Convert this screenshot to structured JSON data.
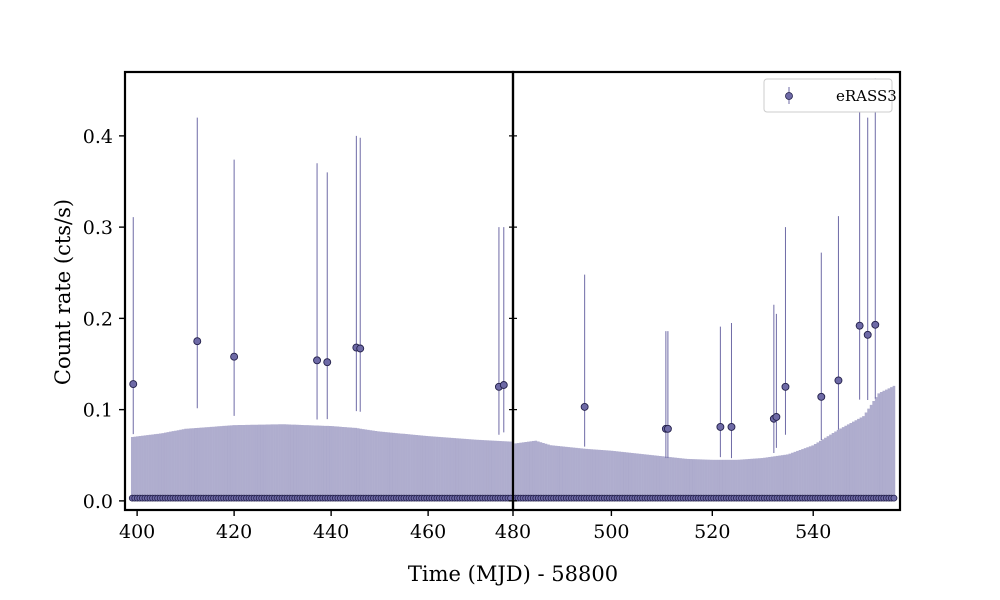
{
  "chart_data": {
    "type": "scatter",
    "xlabel": "Time (MJD) - 58800",
    "ylabel": "Count rate (cts/s)",
    "ylim": [
      -0.01,
      0.47
    ],
    "yticks": [
      0.0,
      0.1,
      0.2,
      0.3,
      0.4
    ],
    "ytick_labels": [
      "0.0",
      "0.1",
      "0.2",
      "0.3",
      "0.4"
    ],
    "legend": {
      "label": "eRASS3",
      "placement": "top-right"
    },
    "colors": {
      "marker_fill": "#6e6aa6",
      "marker_edge": "#23204a",
      "errorbar": "#6e6aa6",
      "frame": "#000000"
    },
    "panels": [
      {
        "xlim": [
          397.5,
          477.5
        ],
        "xticks": [
          400,
          420,
          440,
          460
        ],
        "xtick_labels": [
          "400",
          "420",
          "440",
          "460"
        ],
        "upper_error_curve": [
          [
            399,
            0.067
          ],
          [
            405,
            0.071
          ],
          [
            410,
            0.076
          ],
          [
            415,
            0.078
          ],
          [
            420,
            0.08
          ],
          [
            430,
            0.081
          ],
          [
            440,
            0.079
          ],
          [
            445,
            0.077
          ],
          [
            450,
            0.073
          ],
          [
            460,
            0.068
          ],
          [
            470,
            0.064
          ],
          [
            477,
            0.062
          ]
        ],
        "detections": [
          {
            "x": 399.2,
            "y": 0.128,
            "err": 0.183
          },
          {
            "x": 412.4,
            "y": 0.175,
            "err": 0.245
          },
          {
            "x": 420.0,
            "y": 0.158,
            "err": 0.216
          },
          {
            "x": 437.1,
            "y": 0.154,
            "err": 0.216
          },
          {
            "x": 439.2,
            "y": 0.152,
            "err": 0.208
          },
          {
            "x": 445.2,
            "y": 0.168,
            "err": 0.232
          },
          {
            "x": 446.0,
            "y": 0.167,
            "err": 0.231
          },
          {
            "x": 474.6,
            "y": 0.125,
            "err": 0.175
          },
          {
            "x": 475.6,
            "y": 0.127,
            "err": 0.173
          }
        ],
        "nondetection_range": [
          399.0,
          477.0
        ],
        "nondetection_count": 150
      },
      {
        "xlim": [
          480.5,
          557.2
        ],
        "xticks": [
          480,
          500,
          520,
          540
        ],
        "xtick_labels": [
          "480",
          "500",
          "520",
          "540"
        ],
        "upper_error_curve": [
          [
            481,
            0.06
          ],
          [
            485,
            0.063
          ],
          [
            488,
            0.058
          ],
          [
            495,
            0.054
          ],
          [
            500,
            0.052
          ],
          [
            505,
            0.049
          ],
          [
            510,
            0.046
          ],
          [
            515,
            0.043
          ],
          [
            520,
            0.042
          ],
          [
            525,
            0.042
          ],
          [
            530,
            0.044
          ],
          [
            535,
            0.048
          ],
          [
            540,
            0.058
          ],
          [
            545,
            0.075
          ],
          [
            550,
            0.09
          ],
          [
            553,
            0.115
          ],
          [
            556,
            0.123
          ]
        ],
        "detections": [
          {
            "x": 494.7,
            "y": 0.103,
            "err": 0.145
          },
          {
            "x": 510.8,
            "y": 0.079,
            "err": 0.107
          },
          {
            "x": 511.2,
            "y": 0.079,
            "err": 0.107
          },
          {
            "x": 521.6,
            "y": 0.081,
            "err": 0.11
          },
          {
            "x": 523.8,
            "y": 0.081,
            "err": 0.114
          },
          {
            "x": 532.2,
            "y": 0.09,
            "err": 0.125
          },
          {
            "x": 532.7,
            "y": 0.092,
            "err": 0.113
          },
          {
            "x": 534.5,
            "y": 0.125,
            "err": 0.175
          },
          {
            "x": 541.6,
            "y": 0.114,
            "err": 0.158
          },
          {
            "x": 545.0,
            "y": 0.132,
            "err": 0.18
          },
          {
            "x": 549.2,
            "y": 0.192,
            "err": 0.27
          },
          {
            "x": 550.8,
            "y": 0.182,
            "err": 0.238
          },
          {
            "x": 552.3,
            "y": 0.193,
            "err": 0.27
          }
        ],
        "nondetection_range": [
          481.0,
          556.0
        ],
        "nondetection_count": 150
      }
    ]
  }
}
